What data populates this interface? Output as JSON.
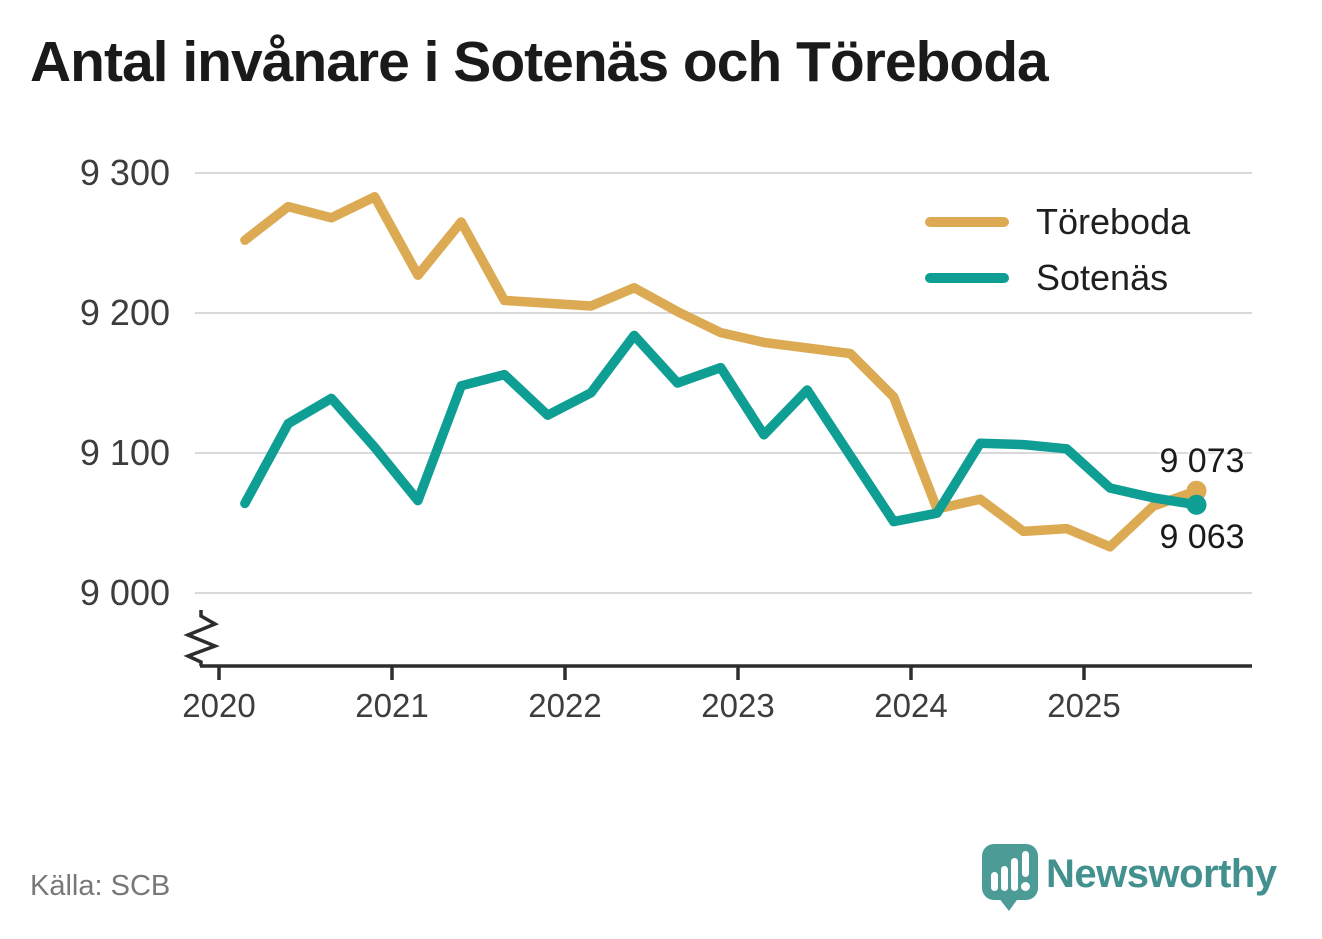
{
  "title": "Antal invånare i Sotenäs och Töreboda",
  "source": "Källa: SCB",
  "branding": {
    "logo_text": "Newsworthy",
    "logo_text_color": "#43918e",
    "icon_color": "#4c9b97"
  },
  "chart_data": {
    "type": "line",
    "title": "Antal invånare i Sotenäs och Töreboda",
    "x_unit": "quarter",
    "x": [
      "2020-Q1",
      "2020-Q2",
      "2020-Q3",
      "2020-Q4",
      "2021-Q1",
      "2021-Q2",
      "2021-Q3",
      "2021-Q4",
      "2022-Q1",
      "2022-Q2",
      "2022-Q3",
      "2022-Q4",
      "2023-Q1",
      "2023-Q2",
      "2023-Q3",
      "2023-Q4",
      "2024-Q1",
      "2024-Q2",
      "2024-Q3",
      "2024-Q4",
      "2025-Q1",
      "2025-Q2",
      "2025-Q3"
    ],
    "series": [
      {
        "name": "Töreboda",
        "color": "#dcaa53",
        "end_label": "9 073",
        "end_value": 9073,
        "values": [
          9252,
          9276,
          9268,
          9283,
          9227,
          9265,
          9209,
          9207,
          9205,
          9218,
          9201,
          9186,
          9179,
          9175,
          9171,
          9140,
          9060,
          9067,
          9044,
          9046,
          9033,
          9062,
          9073
        ]
      },
      {
        "name": "Sotenäs",
        "color": "#0f9e94",
        "end_label": "9 063",
        "end_value": 9063,
        "values": [
          9064,
          9121,
          9139,
          9104,
          9066,
          9148,
          9156,
          9127,
          9143,
          9184,
          9150,
          9161,
          9113,
          9145,
          9098,
          9051,
          9057,
          9107,
          9106,
          9103,
          9075,
          9068,
          9063
        ]
      }
    ],
    "y_axis": {
      "min": 9000,
      "max": 9300,
      "ticks": [
        9300,
        9200,
        9100,
        9000
      ],
      "tick_labels": [
        "9 300",
        "9 200",
        "9 100",
        "9 000"
      ],
      "break_marker": true
    },
    "x_axis": {
      "ticks": [
        2020,
        2021,
        2022,
        2023,
        2024,
        2025
      ],
      "tick_labels": [
        "2020",
        "2021",
        "2022",
        "2023",
        "2024",
        "2025"
      ]
    },
    "grid": "horizontal",
    "legend_position": "top-right",
    "style_colors": {
      "grid": "#d9d9d9",
      "axis": "#2d2d2d",
      "tick_label": "#3d3d3d"
    }
  }
}
